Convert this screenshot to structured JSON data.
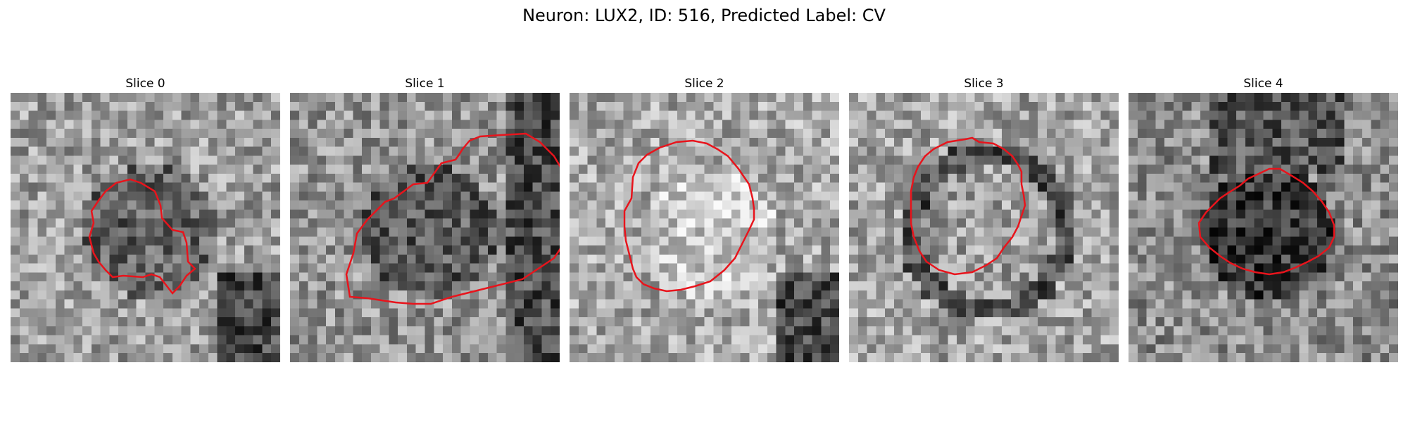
{
  "figure": {
    "title": "Neuron: LUX2, ID: 516, Predicted Label: CV"
  },
  "colors": {
    "outline": "#e8141c",
    "background": "#ffffff"
  },
  "panels": [
    {
      "title": "Slice 0",
      "seed": 11,
      "base": 0.62,
      "inside": 0.38,
      "dark_corner": "bottom-right"
    },
    {
      "title": "Slice 1",
      "seed": 23,
      "base": 0.58,
      "inside": 0.35,
      "dark_corner": "right"
    },
    {
      "title": "Slice 2",
      "seed": 37,
      "base": 0.66,
      "inside": 0.78,
      "dark_corner": "bottom-right"
    },
    {
      "title": "Slice 3",
      "seed": 41,
      "base": 0.64,
      "inside": 0.62,
      "dark_corner": "ring"
    },
    {
      "title": "Slice 4",
      "seed": 53,
      "base": 0.55,
      "inside": 0.22,
      "dark_corner": "top"
    }
  ]
}
